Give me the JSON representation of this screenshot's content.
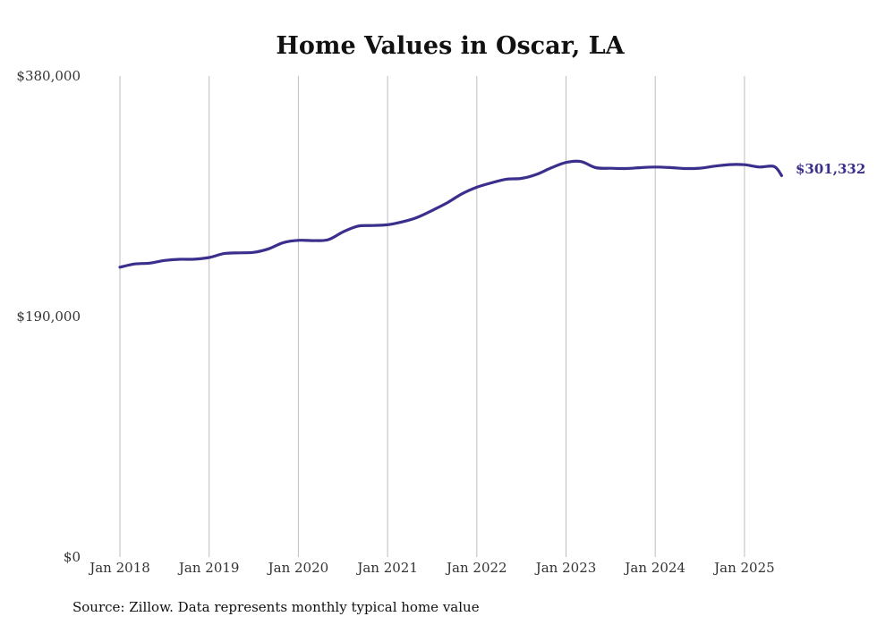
{
  "chart_data": {
    "type": "line",
    "title": "Home Values in Oscar, LA",
    "xlabel": "",
    "ylabel": "",
    "ylim": [
      0,
      380000
    ],
    "y_ticks": [
      "$0",
      "$190,000",
      "$380,000"
    ],
    "y_tick_values": [
      0,
      190000,
      380000
    ],
    "x_ticks": [
      "Jan 2018",
      "Jan 2019",
      "Jan 2020",
      "Jan 2021",
      "Jan 2022",
      "Jan 2023",
      "Jan 2024",
      "Jan 2025"
    ],
    "x_tick_values": [
      "2018-01",
      "2019-01",
      "2020-01",
      "2021-01",
      "2022-01",
      "2023-01",
      "2024-01",
      "2025-01"
    ],
    "grid": "vertical",
    "legend": "none",
    "line_color": "#3a2f8c",
    "series": [
      {
        "x": [
          "2018-01",
          "2018-03",
          "2018-05",
          "2018-07",
          "2018-09",
          "2018-11",
          "2019-01",
          "2019-03",
          "2019-05",
          "2019-07",
          "2019-09",
          "2019-11",
          "2020-01",
          "2020-03",
          "2020-05",
          "2020-07",
          "2020-09",
          "2020-11",
          "2021-01",
          "2021-03",
          "2021-05",
          "2021-07",
          "2021-09",
          "2021-11",
          "2022-01",
          "2022-03",
          "2022-05",
          "2022-07",
          "2022-09",
          "2022-11",
          "2023-01",
          "2023-03",
          "2023-05",
          "2023-07",
          "2023-09",
          "2023-11",
          "2024-01",
          "2024-03",
          "2024-05",
          "2024-07",
          "2024-09",
          "2024-11",
          "2025-01",
          "2025-03",
          "2025-05",
          "2025-06"
        ],
        "values": [
          229000,
          231500,
          232200,
          234300,
          235200,
          235300,
          236600,
          239700,
          240300,
          240700,
          243500,
          248400,
          250200,
          250000,
          250700,
          256800,
          261400,
          261900,
          262500,
          264800,
          268300,
          273800,
          279800,
          286900,
          292100,
          295700,
          298500,
          299100,
          302200,
          307400,
          311700,
          312400,
          307600,
          307100,
          306900,
          307600,
          308100,
          307700,
          306900,
          307200,
          308800,
          310000,
          309900,
          308100,
          308500,
          301332
        ]
      }
    ],
    "end_value_label": "$301,332",
    "source": "Source: Zillow. Data represents monthly typical home value"
  }
}
